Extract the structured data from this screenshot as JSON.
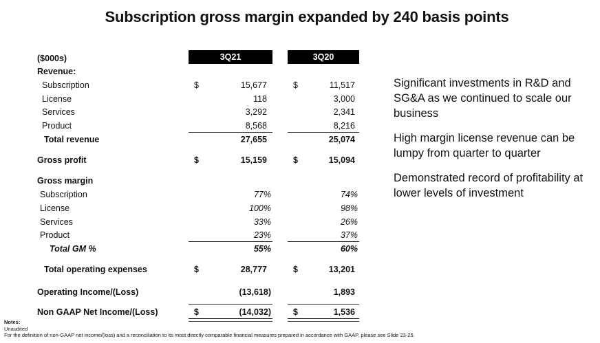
{
  "title": "Subscription gross margin expanded by 240 basis points",
  "table": {
    "units_label": "($000s)",
    "col1": "3Q21",
    "col2": "3Q20",
    "revenue_header": "Revenue:",
    "subscription": {
      "label": "Subscription",
      "d1": "$",
      "v1": "15,677",
      "d2": "$",
      "v2": "11,517"
    },
    "license": {
      "label": "License",
      "v1": "118",
      "v2": "3,000"
    },
    "services": {
      "label": "Services",
      "v1": "3,292",
      "v2": "2,341"
    },
    "product": {
      "label": "Product",
      "v1": "8,568",
      "v2": "8,216"
    },
    "total_revenue": {
      "label": "Total revenue",
      "v1": "27,655",
      "v2": "25,074"
    },
    "gross_profit": {
      "label": "Gross profit",
      "d1": "$",
      "v1": "15,159",
      "d2": "$",
      "v2": "15,094"
    },
    "gm_header": "Gross margin",
    "gm_subscription": {
      "label": "Subscription",
      "v1": "77%",
      "v2": "74%"
    },
    "gm_license": {
      "label": "License",
      "v1": "100%",
      "v2": "98%"
    },
    "gm_services": {
      "label": "Services",
      "v1": "33%",
      "v2": "26%"
    },
    "gm_product": {
      "label": "Product",
      "v1": "23%",
      "v2": "37%"
    },
    "gm_total": {
      "label": "Total GM %",
      "v1": "55%",
      "v2": "60%"
    },
    "opex": {
      "label": "Total operating expenses",
      "d1": "$",
      "v1": "28,777",
      "d2": "$",
      "v2": "13,201"
    },
    "op_income": {
      "label": "Operating Income/(Loss)",
      "v1": "(13,618)",
      "v2": "1,893"
    },
    "net_income": {
      "label": "Non GAAP Net Income/(Loss)",
      "d1": "$",
      "v1": "(14,032)",
      "d2": "$",
      "v2": "1,536"
    }
  },
  "bullets": [
    "Significant investments in R&D and SG&A as we continued to scale our business",
    "High margin license revenue can be lumpy from quarter to quarter",
    "Demonstrated record of profitability at lower levels of investment"
  ],
  "notes": {
    "heading": "Notes:",
    "line1": "Unaudited",
    "line2": "For the definition of non-GAAP net income/(loss) and a reconciliation to its most directly comparable financial measures prepared in accordance with GAAP, please see Slide 23-25."
  }
}
